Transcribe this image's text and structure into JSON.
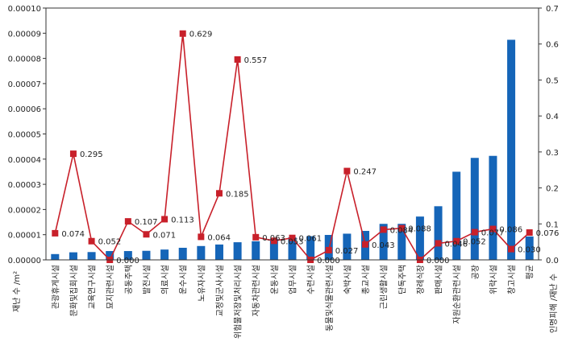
{
  "chart_data": {
    "type": "bar+line",
    "categories": [
      "관광휴게시설",
      "문화및집회시설",
      "교육연구시설",
      "묘지관련시설",
      "공동주택",
      "발전시설",
      "의료시설",
      "운수시설",
      "노유자시설",
      "교정및군사시설",
      "위험물저장및처리시설",
      "자동차관련시설",
      "운동시설",
      "업무시설",
      "수련시설",
      "동물및식물관련시설",
      "숙박시설",
      "종교시설",
      "근린생활시설",
      "단독주택",
      "장례식장",
      "판매시설",
      "자원순환관련시설",
      "공장",
      "위락시설",
      "창고시설",
      "평균"
    ],
    "series": [
      {
        "kind": "bar",
        "axis": "left",
        "color": "#1565b8",
        "values": [
          2.3e-06,
          3e-06,
          3.1e-06,
          3.5e-06,
          3.5e-06,
          3.6e-06,
          4.1e-06,
          4.8e-06,
          5.5e-06,
          6.1e-06,
          7e-06,
          7.4e-06,
          8.4e-06,
          9e-06,
          9.4e-06,
          9.9e-06,
          1.04e-05,
          1.15e-05,
          1.43e-05,
          1.43e-05,
          1.72e-05,
          2.13e-05,
          3.5e-05,
          4.05e-05,
          4.13e-05,
          8.74e-05,
          9.3e-06
        ]
      },
      {
        "kind": "line",
        "axis": "right",
        "color": "#c8202a",
        "values": [
          0.074,
          0.295,
          0.052,
          0.0,
          0.107,
          0.071,
          0.113,
          0.629,
          0.064,
          0.185,
          0.557,
          0.063,
          0.053,
          0.061,
          0.0,
          0.027,
          0.247,
          0.043,
          0.084,
          0.088,
          0.0,
          0.046,
          0.052,
          0.077,
          0.086,
          0.03,
          0.076
        ],
        "labels": [
          "0.074",
          "0.295",
          "0.052",
          "0.000",
          "0.107",
          "0.071",
          "0.113",
          "0.629",
          "0.064",
          "0.185",
          "0.557",
          "0.063",
          "0.053",
          "0.061",
          "0.000",
          "0.027",
          "0.247",
          "0.043",
          "0.084",
          "0.088",
          "0.000",
          "0.046",
          "0.052",
          "0.077",
          "0.086",
          "0.030",
          "0.076"
        ]
      }
    ],
    "left_axis": {
      "min": 0,
      "max": 0.0001,
      "ticks": [
        "0.00000",
        "0.00001",
        "0.00002",
        "0.00003",
        "0.00004",
        "0.00005",
        "0.00006",
        "0.00007",
        "0.00008",
        "0.00009",
        "0.00010"
      ],
      "label": "재난 수 /m²"
    },
    "right_axis": {
      "min": 0,
      "max": 0.7,
      "ticks": [
        "0.0",
        "0.1",
        "0.2",
        "0.3",
        "0.4",
        "0.5",
        "0.6",
        "0.7"
      ],
      "label": "인명피해 /재난 수"
    },
    "grid": false
  }
}
